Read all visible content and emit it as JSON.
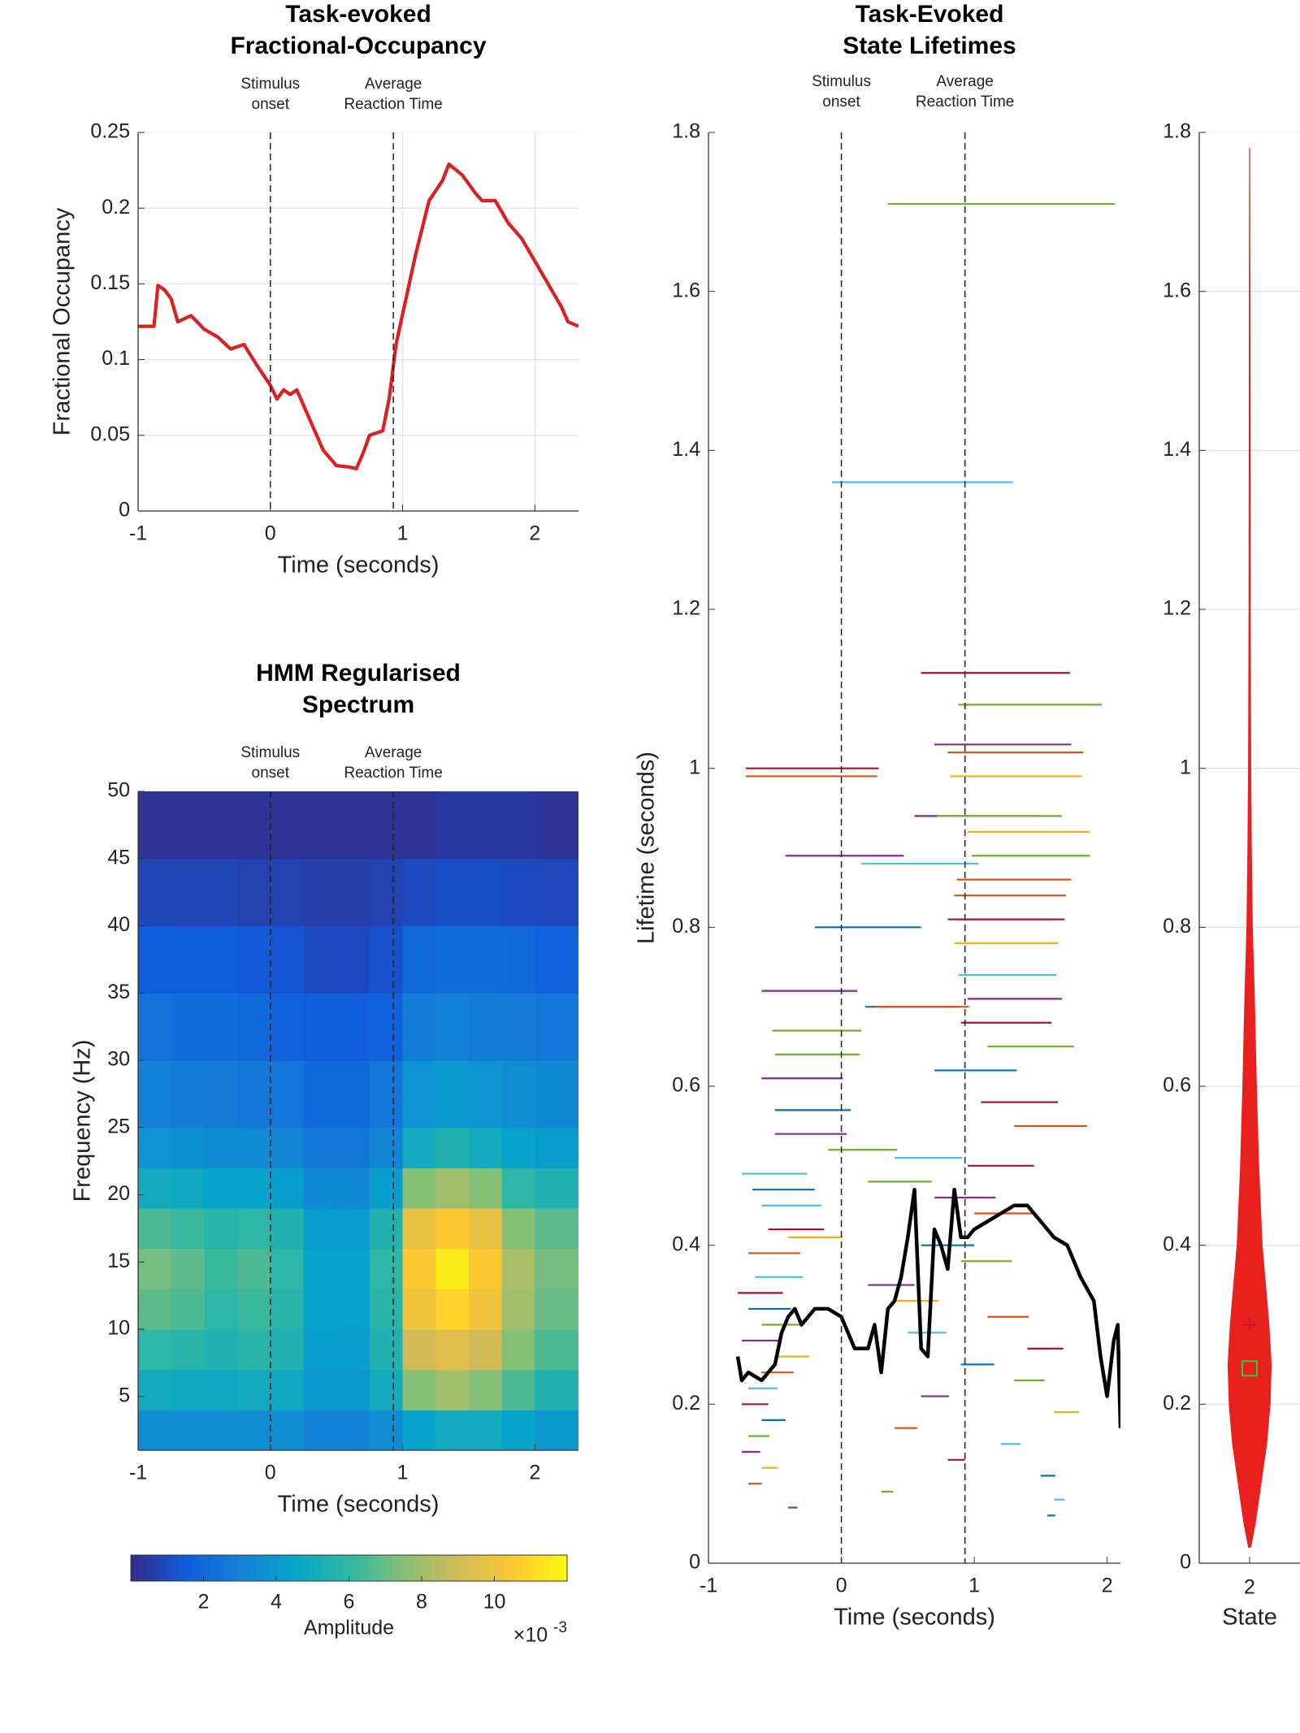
{
  "chart_data": [
    {
      "type": "line",
      "title": [
        "Task-evoked",
        "Fractional-Occupancy"
      ],
      "xlabel": "Time (seconds)",
      "ylabel": "Fractional Occupancy",
      "color": "#dd1f1f",
      "grid": true,
      "xlim": [
        -1,
        2.33
      ],
      "ylim": [
        0,
        0.25
      ],
      "xticks": [
        -1,
        0,
        1,
        2
      ],
      "yticks": [
        0,
        0.05,
        0.1,
        0.15,
        0.2,
        0.25
      ],
      "annotations": [
        {
          "x": 0,
          "text": [
            "Stimulus",
            "onset"
          ]
        },
        {
          "x": 0.93,
          "text": [
            "Average",
            "Reaction Time"
          ]
        }
      ],
      "x": [
        -1,
        -0.9,
        -0.88,
        -0.85,
        -0.8,
        -0.75,
        -0.7,
        -0.6,
        -0.5,
        -0.4,
        -0.3,
        -0.2,
        -0.1,
        0,
        0.05,
        0.1,
        0.15,
        0.2,
        0.3,
        0.4,
        0.5,
        0.6,
        0.65,
        0.7,
        0.75,
        0.85,
        0.9,
        0.95,
        1,
        1.1,
        1.2,
        1.3,
        1.35,
        1.45,
        1.55,
        1.6,
        1.7,
        1.8,
        1.9,
        2,
        2.1,
        2.2,
        2.25,
        2.33
      ],
      "values": [
        0.122,
        0.122,
        0.122,
        0.149,
        0.146,
        0.14,
        0.125,
        0.129,
        0.12,
        0.115,
        0.107,
        0.11,
        0.096,
        0.083,
        0.074,
        0.08,
        0.077,
        0.08,
        0.06,
        0.04,
        0.03,
        0.029,
        0.028,
        0.038,
        0.05,
        0.053,
        0.075,
        0.11,
        0.13,
        0.17,
        0.205,
        0.218,
        0.229,
        0.222,
        0.21,
        0.205,
        0.205,
        0.19,
        0.18,
        0.165,
        0.15,
        0.135,
        0.125,
        0.122
      ]
    },
    {
      "type": "heatmap",
      "title": [
        "HMM Regularised",
        "Spectrum"
      ],
      "xlabel": "Time (seconds)",
      "ylabel": "Frequency (Hz)",
      "xlim": [
        -1,
        2.33
      ],
      "ylim": [
        1,
        50
      ],
      "xticks": [
        -1,
        0,
        1,
        2
      ],
      "yticks": [
        5,
        10,
        15,
        20,
        25,
        30,
        35,
        40,
        45,
        50
      ],
      "annotations": [
        {
          "x": 0,
          "text": [
            "Stimulus",
            "onset"
          ]
        },
        {
          "x": 0.93,
          "text": [
            "Average",
            "Reaction Time"
          ]
        }
      ],
      "x_edges": [
        -1,
        -0.75,
        -0.5,
        -0.25,
        0,
        0.25,
        0.5,
        0.75,
        1,
        1.25,
        1.5,
        1.75,
        2,
        2.33
      ],
      "y_edges": [
        1,
        4,
        7,
        10,
        13,
        16,
        19,
        22,
        25,
        30,
        35,
        40,
        45,
        50
      ],
      "values": [
        [
          3.5,
          3.5,
          3.5,
          3.5,
          3.5,
          3.0,
          3.0,
          3.5,
          4.5,
          5.0,
          5.0,
          4.5,
          4.0
        ],
        [
          5.0,
          4.8,
          4.8,
          5.0,
          4.8,
          4.0,
          4.0,
          5.0,
          7.5,
          8.0,
          7.5,
          6.5,
          5.5
        ],
        [
          6.0,
          5.8,
          5.5,
          5.8,
          5.5,
          4.3,
          4.3,
          5.5,
          9.0,
          9.5,
          9.0,
          7.5,
          6.5
        ],
        [
          6.8,
          6.5,
          6.0,
          6.2,
          5.8,
          4.5,
          4.4,
          5.8,
          10.0,
          10.8,
          10.0,
          8.0,
          7.0
        ],
        [
          7.2,
          6.8,
          6.2,
          6.5,
          6.0,
          4.5,
          4.5,
          6.0,
          10.5,
          11.5,
          10.5,
          8.2,
          7.2
        ],
        [
          6.5,
          6.2,
          5.8,
          6.0,
          5.5,
          4.2,
          4.2,
          5.5,
          9.8,
          10.5,
          9.8,
          7.5,
          6.8
        ],
        [
          5.0,
          4.8,
          4.5,
          4.5,
          4.2,
          3.3,
          3.3,
          4.2,
          7.5,
          8.0,
          7.5,
          6.0,
          5.5
        ],
        [
          3.8,
          3.6,
          3.4,
          3.4,
          3.2,
          2.6,
          2.6,
          3.2,
          5.0,
          5.5,
          5.0,
          4.5,
          4.2
        ],
        [
          3.0,
          2.8,
          2.7,
          2.6,
          2.5,
          2.0,
          2.0,
          2.5,
          3.8,
          4.0,
          3.8,
          3.5,
          3.3
        ],
        [
          2.3,
          2.2,
          2.1,
          2.0,
          1.8,
          1.5,
          1.5,
          1.8,
          2.8,
          3.0,
          2.8,
          2.7,
          2.5
        ],
        [
          1.6,
          1.5,
          1.5,
          1.4,
          1.3,
          1.0,
          1.0,
          1.2,
          2.0,
          2.2,
          2.1,
          2.0,
          1.8
        ],
        [
          0.8,
          0.8,
          0.8,
          0.7,
          0.7,
          0.6,
          0.6,
          0.7,
          1.0,
          1.1,
          1.1,
          1.0,
          0.9
        ],
        [
          0.3,
          0.3,
          0.3,
          0.3,
          0.3,
          0.3,
          0.3,
          0.3,
          0.3,
          0.4,
          0.4,
          0.4,
          0.3
        ]
      ],
      "colormap": [
        "#352a87",
        "#0f5cdd",
        "#1481d6",
        "#06a4ca",
        "#2eb7a4",
        "#87bf77",
        "#d1bb59",
        "#fec832",
        "#f9fb0e"
      ],
      "clim": [
        0,
        12
      ],
      "colorbar_ticks": [
        2,
        4,
        6,
        8,
        10
      ],
      "colorbar_label": "Amplitude",
      "colorbar_multiplier": {
        "base": "×10",
        "exponent": "-3"
      }
    },
    {
      "type": "segment",
      "title": [
        "Task-Evoked",
        "State Lifetimes"
      ],
      "xlabel": "Time (seconds)",
      "ylabel": "Lifetime (seconds)",
      "xlim": [
        -1,
        2.1
      ],
      "ylim": [
        0,
        1.8
      ],
      "xticks": [
        -1,
        0,
        1,
        2
      ],
      "yticks": [
        0,
        0.2,
        0.4,
        0.6,
        0.8,
        1,
        1.2,
        1.4,
        1.6,
        1.8
      ],
      "annotations": [
        {
          "x": 0,
          "text": [
            "Stimulus",
            "onset"
          ]
        },
        {
          "x": 0.93,
          "text": [
            "Average",
            "Reaction Time"
          ]
        }
      ],
      "segments": [
        {
          "start": 0.35,
          "lifetime": 1.71,
          "color": "#77ac30"
        },
        {
          "start": -0.07,
          "lifetime": 1.36,
          "color": "#4dbeee"
        },
        {
          "start": 0.6,
          "lifetime": 1.12,
          "color": "#a2142f"
        },
        {
          "start": 0.88,
          "lifetime": 1.08,
          "color": "#77ac30"
        },
        {
          "start": 0.7,
          "lifetime": 1.03,
          "color": "#7e2f8e"
        },
        {
          "start": 0.8,
          "lifetime": 1.02,
          "color": "#d95319"
        },
        {
          "start": 0.82,
          "lifetime": 0.99,
          "color": "#edb120"
        },
        {
          "start": -0.72,
          "lifetime": 1.0,
          "color": "#a2142f"
        },
        {
          "start": -0.72,
          "lifetime": 0.99,
          "color": "#d95319"
        },
        {
          "start": 0.55,
          "lifetime": 0.94,
          "color": "#7e2f8e"
        },
        {
          "start": 0.72,
          "lifetime": 0.94,
          "color": "#77ac30"
        },
        {
          "start": 0.95,
          "lifetime": 0.92,
          "color": "#edb120"
        },
        {
          "start": -0.42,
          "lifetime": 0.89,
          "color": "#7e2f8e"
        },
        {
          "start": 0.98,
          "lifetime": 0.89,
          "color": "#77ac30"
        },
        {
          "start": 0.15,
          "lifetime": 0.88,
          "color": "#4dbeee"
        },
        {
          "start": 0.87,
          "lifetime": 0.86,
          "color": "#d95319"
        },
        {
          "start": 0.85,
          "lifetime": 0.84,
          "color": "#d95319"
        },
        {
          "start": 0.87,
          "lifetime": 0.81,
          "color": "#a2142f"
        },
        {
          "start": -0.2,
          "lifetime": 0.8,
          "color": "#0072bd"
        },
        {
          "start": 0.8,
          "lifetime": 0.81,
          "color": "#a2142f"
        },
        {
          "start": 0.85,
          "lifetime": 0.78,
          "color": "#edb120"
        },
        {
          "start": 0.88,
          "lifetime": 0.74,
          "color": "#4dbeee"
        },
        {
          "start": -0.6,
          "lifetime": 0.72,
          "color": "#7e2f8e"
        },
        {
          "start": 0.95,
          "lifetime": 0.71,
          "color": "#7e2f8e"
        },
        {
          "start": 0.18,
          "lifetime": 0.7,
          "color": "#0072bd"
        },
        {
          "start": 0.26,
          "lifetime": 0.7,
          "color": "#d95319"
        },
        {
          "start": 0.9,
          "lifetime": 0.68,
          "color": "#a2142f"
        },
        {
          "start": -0.52,
          "lifetime": 0.67,
          "color": "#77ac30"
        },
        {
          "start": 1.1,
          "lifetime": 0.65,
          "color": "#77ac30"
        },
        {
          "start": -0.5,
          "lifetime": 0.64,
          "color": "#77ac30"
        },
        {
          "start": 0.7,
          "lifetime": 0.62,
          "color": "#0072bd"
        },
        {
          "start": -0.6,
          "lifetime": 0.61,
          "color": "#7e2f8e"
        },
        {
          "start": 1.05,
          "lifetime": 0.58,
          "color": "#a2142f"
        },
        {
          "start": -0.5,
          "lifetime": 0.57,
          "color": "#0072bd"
        },
        {
          "start": 1.3,
          "lifetime": 0.55,
          "color": "#d95319"
        },
        {
          "start": -0.5,
          "lifetime": 0.54,
          "color": "#7e2f8e"
        },
        {
          "start": -0.1,
          "lifetime": 0.52,
          "color": "#77ac30"
        },
        {
          "start": 0.4,
          "lifetime": 0.51,
          "color": "#4dbeee"
        },
        {
          "start": 0.95,
          "lifetime": 0.5,
          "color": "#a2142f"
        },
        {
          "start": -0.75,
          "lifetime": 0.49,
          "color": "#4dbeee"
        },
        {
          "start": 0.2,
          "lifetime": 0.48,
          "color": "#77ac30"
        },
        {
          "start": -0.67,
          "lifetime": 0.47,
          "color": "#0072bd"
        },
        {
          "start": 0.7,
          "lifetime": 0.46,
          "color": "#7e2f8e"
        },
        {
          "start": -0.6,
          "lifetime": 0.45,
          "color": "#4dbeee"
        },
        {
          "start": 1.0,
          "lifetime": 0.44,
          "color": "#d95319"
        },
        {
          "start": -0.55,
          "lifetime": 0.42,
          "color": "#a2142f"
        },
        {
          "start": -0.4,
          "lifetime": 0.41,
          "color": "#edb120"
        },
        {
          "start": 0.6,
          "lifetime": 0.4,
          "color": "#0072bd"
        },
        {
          "start": -0.7,
          "lifetime": 0.39,
          "color": "#d95319"
        },
        {
          "start": 0.9,
          "lifetime": 0.38,
          "color": "#77ac30"
        },
        {
          "start": -0.65,
          "lifetime": 0.36,
          "color": "#4dbeee"
        },
        {
          "start": 0.2,
          "lifetime": 0.35,
          "color": "#7e2f8e"
        },
        {
          "start": -0.78,
          "lifetime": 0.34,
          "color": "#a2142f"
        },
        {
          "start": 0.4,
          "lifetime": 0.33,
          "color": "#edb120"
        },
        {
          "start": -0.7,
          "lifetime": 0.32,
          "color": "#0072bd"
        },
        {
          "start": 1.1,
          "lifetime": 0.31,
          "color": "#d95319"
        },
        {
          "start": -0.6,
          "lifetime": 0.3,
          "color": "#77ac30"
        },
        {
          "start": 0.5,
          "lifetime": 0.29,
          "color": "#4dbeee"
        },
        {
          "start": -0.75,
          "lifetime": 0.28,
          "color": "#7e2f8e"
        },
        {
          "start": 1.4,
          "lifetime": 0.27,
          "color": "#a2142f"
        },
        {
          "start": -0.5,
          "lifetime": 0.26,
          "color": "#edb120"
        },
        {
          "start": 0.9,
          "lifetime": 0.25,
          "color": "#0072bd"
        },
        {
          "start": -0.6,
          "lifetime": 0.24,
          "color": "#d95319"
        },
        {
          "start": 1.3,
          "lifetime": 0.23,
          "color": "#77ac30"
        },
        {
          "start": -0.7,
          "lifetime": 0.22,
          "color": "#4dbeee"
        },
        {
          "start": 0.6,
          "lifetime": 0.21,
          "color": "#7e2f8e"
        },
        {
          "start": -0.75,
          "lifetime": 0.2,
          "color": "#a2142f"
        },
        {
          "start": 1.6,
          "lifetime": 0.19,
          "color": "#edb120"
        },
        {
          "start": -0.6,
          "lifetime": 0.18,
          "color": "#0072bd"
        },
        {
          "start": 0.4,
          "lifetime": 0.17,
          "color": "#d95319"
        },
        {
          "start": -0.7,
          "lifetime": 0.16,
          "color": "#77ac30"
        },
        {
          "start": 1.2,
          "lifetime": 0.15,
          "color": "#4dbeee"
        },
        {
          "start": -0.75,
          "lifetime": 0.14,
          "color": "#7e2f8e"
        },
        {
          "start": 0.8,
          "lifetime": 0.13,
          "color": "#a2142f"
        },
        {
          "start": -0.6,
          "lifetime": 0.12,
          "color": "#edb120"
        },
        {
          "start": 1.5,
          "lifetime": 0.11,
          "color": "#0072bd"
        },
        {
          "start": -0.7,
          "lifetime": 0.1,
          "color": "#d95319"
        },
        {
          "start": 0.3,
          "lifetime": 0.09,
          "color": "#77ac30"
        },
        {
          "start": 1.6,
          "lifetime": 0.08,
          "color": "#4dbeee"
        },
        {
          "start": -0.4,
          "lifetime": 0.07,
          "color": "#7e2f8e"
        },
        {
          "start": 1.55,
          "lifetime": 0.06,
          "color": "#0072bd"
        }
      ],
      "mean_line": {
        "color": "#000000",
        "x": [
          -0.78,
          -0.75,
          -0.7,
          -0.65,
          -0.6,
          -0.55,
          -0.5,
          -0.45,
          -0.4,
          -0.35,
          -0.3,
          -0.2,
          -0.1,
          0,
          0.05,
          0.1,
          0.2,
          0.25,
          0.3,
          0.35,
          0.4,
          0.45,
          0.5,
          0.55,
          0.6,
          0.65,
          0.7,
          0.75,
          0.8,
          0.85,
          0.9,
          0.95,
          1,
          1.1,
          1.2,
          1.3,
          1.4,
          1.5,
          1.6,
          1.7,
          1.8,
          1.9,
          1.95,
          2,
          2.05,
          2.08,
          2.1
        ],
        "values": [
          0.26,
          0.23,
          0.24,
          0.235,
          0.23,
          0.24,
          0.25,
          0.29,
          0.31,
          0.32,
          0.3,
          0.32,
          0.32,
          0.31,
          0.29,
          0.27,
          0.27,
          0.3,
          0.24,
          0.32,
          0.33,
          0.36,
          0.41,
          0.47,
          0.27,
          0.26,
          0.42,
          0.4,
          0.37,
          0.47,
          0.41,
          0.41,
          0.42,
          0.43,
          0.44,
          0.45,
          0.45,
          0.43,
          0.41,
          0.4,
          0.36,
          0.33,
          0.26,
          0.21,
          0.28,
          0.3,
          0.17
        ]
      }
    },
    {
      "type": "violin",
      "xlabel": "State",
      "categories": [
        "2"
      ],
      "xlim": [
        1.5,
        2.5
      ],
      "ylim": [
        0,
        1.8
      ],
      "yticks": [
        0,
        0.2,
        0.4,
        0.6,
        0.8,
        1,
        1.2,
        1.4,
        1.6,
        1.8
      ],
      "grid": true,
      "color": "#e8211f",
      "lifetimes": [
        0.02,
        0.05,
        0.1,
        0.15,
        0.2,
        0.25,
        0.3,
        0.35,
        0.4,
        0.5,
        0.6,
        0.7,
        0.8,
        0.9,
        1.0,
        1.2,
        1.4,
        1.6,
        1.78
      ],
      "density": [
        0.05,
        0.25,
        0.5,
        0.75,
        0.9,
        0.95,
        0.85,
        0.7,
        0.55,
        0.4,
        0.3,
        0.22,
        0.12,
        0.08,
        0.05,
        0.03,
        0.02,
        0.015,
        0.005
      ],
      "median": 0.3,
      "mean": 0.245,
      "median_color": "#c8102e",
      "mean_color": "#33cc33"
    }
  ]
}
